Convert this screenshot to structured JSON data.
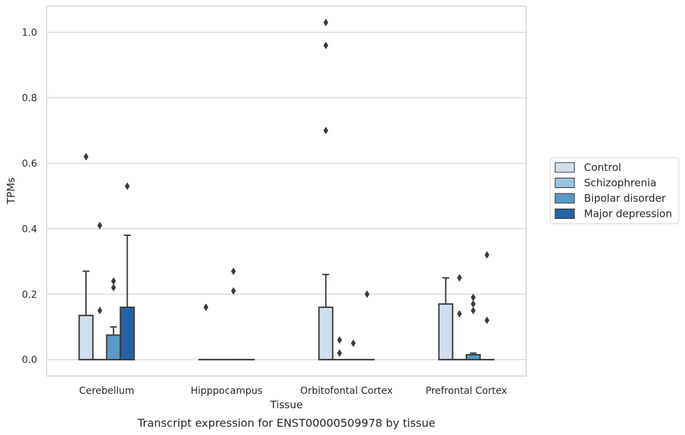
{
  "chart_data": {
    "type": "box",
    "caption": "Transcript expression for ENST00000509978 by tissue",
    "xlabel": "Tissue",
    "ylabel": "TPMs",
    "ylim": [
      -0.05,
      1.08
    ],
    "yticks": [
      0.0,
      0.2,
      0.4,
      0.6,
      0.8,
      1.0
    ],
    "grid": true,
    "legend_position": "right",
    "categories": [
      "Cerebellum",
      "Hipppocampus",
      "Orbitofontal Cortex",
      "Prefrontal Cortex"
    ],
    "series": [
      {
        "name": "Control",
        "color": "#d0dfee",
        "boxes": [
          {
            "q1": 0.0,
            "q3": 0.135,
            "median": 0.0,
            "whisker_low": 0.0,
            "whisker_high": 0.27,
            "outliers": [
              0.62
            ]
          },
          {
            "q1": 0.0,
            "q3": 0.0,
            "median": 0.0,
            "whisker_low": 0.0,
            "whisker_high": 0.0,
            "outliers": [
              0.16
            ]
          },
          {
            "q1": 0.0,
            "q3": 0.16,
            "median": 0.0,
            "whisker_low": 0.0,
            "whisker_high": 0.26,
            "outliers": [
              0.7,
              0.96,
              1.03
            ]
          },
          {
            "q1": 0.0,
            "q3": 0.17,
            "median": 0.0,
            "whisker_low": 0.0,
            "whisker_high": 0.25,
            "outliers": []
          }
        ]
      },
      {
        "name": "Schizophrenia",
        "color": "#9cc2dc",
        "boxes": [
          {
            "q1": 0.0,
            "q3": 0.0,
            "median": 0.0,
            "whisker_low": 0.0,
            "whisker_high": 0.0,
            "outliers": [
              0.15,
              0.41
            ]
          },
          {
            "q1": 0.0,
            "q3": 0.0,
            "median": 0.0,
            "whisker_low": 0.0,
            "whisker_high": 0.0,
            "outliers": []
          },
          {
            "q1": 0.0,
            "q3": 0.0,
            "median": 0.0,
            "whisker_low": 0.0,
            "whisker_high": 0.0,
            "outliers": [
              0.02,
              0.06
            ]
          },
          {
            "q1": 0.0,
            "q3": 0.0,
            "median": 0.0,
            "whisker_low": 0.0,
            "whisker_high": 0.0,
            "outliers": [
              0.14,
              0.25
            ]
          }
        ]
      },
      {
        "name": "Bipolar disorder",
        "color": "#5a9ac7",
        "boxes": [
          {
            "q1": 0.0,
            "q3": 0.075,
            "median": 0.0,
            "whisker_low": 0.0,
            "whisker_high": 0.1,
            "outliers": [
              0.22,
              0.24
            ]
          },
          {
            "q1": 0.0,
            "q3": 0.0,
            "median": 0.0,
            "whisker_low": 0.0,
            "whisker_high": 0.0,
            "outliers": [
              0.21,
              0.27
            ]
          },
          {
            "q1": 0.0,
            "q3": 0.0,
            "median": 0.0,
            "whisker_low": 0.0,
            "whisker_high": 0.0,
            "outliers": [
              0.05
            ]
          },
          {
            "q1": 0.0,
            "q3": 0.015,
            "median": 0.0,
            "whisker_low": 0.0,
            "whisker_high": 0.02,
            "outliers": [
              0.15,
              0.17,
              0.19
            ]
          }
        ]
      },
      {
        "name": "Major depression",
        "color": "#2763a4",
        "boxes": [
          {
            "q1": 0.0,
            "q3": 0.16,
            "median": 0.0,
            "whisker_low": 0.0,
            "whisker_high": 0.38,
            "outliers": [
              0.53
            ]
          },
          {
            "q1": 0.0,
            "q3": 0.0,
            "median": 0.0,
            "whisker_low": 0.0,
            "whisker_high": 0.0,
            "outliers": []
          },
          {
            "q1": 0.0,
            "q3": 0.0,
            "median": 0.0,
            "whisker_low": 0.0,
            "whisker_high": 0.0,
            "outliers": [
              0.2
            ]
          },
          {
            "q1": 0.0,
            "q3": 0.0,
            "median": 0.0,
            "whisker_low": 0.0,
            "whisker_high": 0.0,
            "outliers": [
              0.12,
              0.32
            ]
          }
        ]
      }
    ]
  }
}
